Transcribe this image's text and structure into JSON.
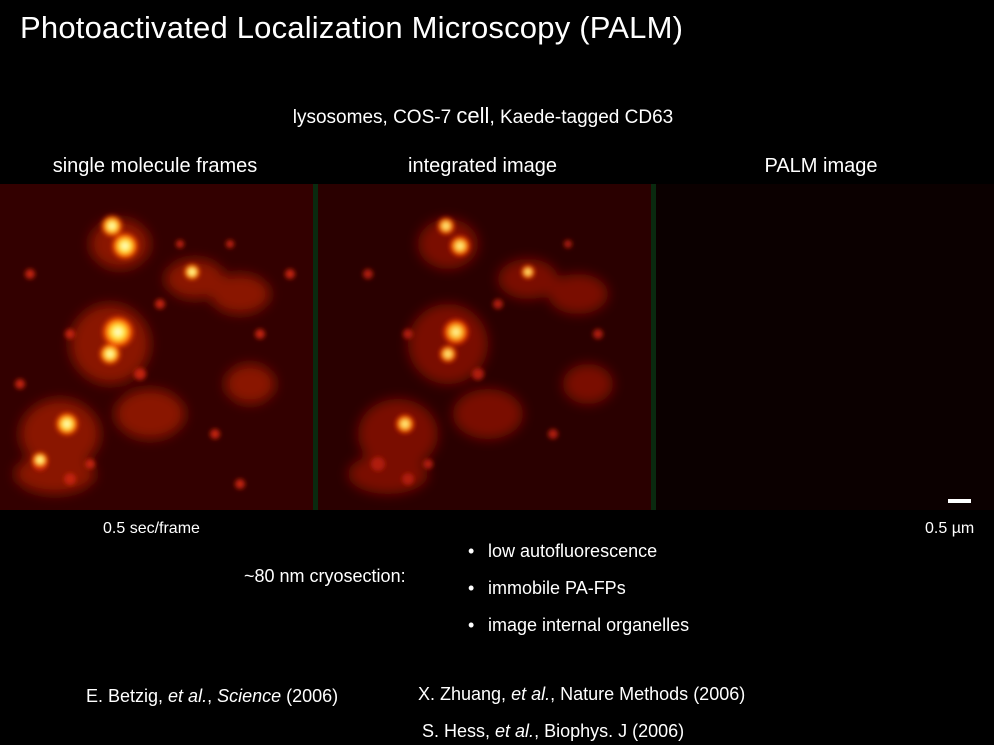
{
  "title": "Photoactivated Localization Microscopy (PALM)",
  "subtitle": {
    "part1": "lysosomes, COS-7 ",
    "part2": "cell",
    "part3": ", Kaede-tagged CD63"
  },
  "panels": [
    {
      "label": "single molecule frames"
    },
    {
      "label": "integrated image"
    },
    {
      "label": "PALM image"
    }
  ],
  "frame_rate_label": "0.5 sec/frame",
  "scale_bar_label": "0.5 µm",
  "cryosection_label": "~80 nm cryosection:",
  "bullet_symbol": "•",
  "bullets": [
    "low autofluorescence",
    "immobile PA-FPs",
    "image internal organelles"
  ],
  "references": [
    {
      "authors": "E. Betzig, ",
      "etal": "et al.",
      "sep": ", ",
      "journal": "Science",
      "year": " (2006)"
    },
    {
      "authors": "X. Zhuang, ",
      "etal": "et al.",
      "sep": ", ",
      "journal": "Nature Methods",
      "year": " (2006)"
    },
    {
      "authors": "S. Hess, ",
      "etal": "et al.",
      "sep": ", ",
      "journal": "Biophys. J",
      "year": " (2006)"
    }
  ],
  "colors": {
    "background": "#000000",
    "text": "#ffffff",
    "divider": "#0a2a0f",
    "colormap": "hot"
  }
}
